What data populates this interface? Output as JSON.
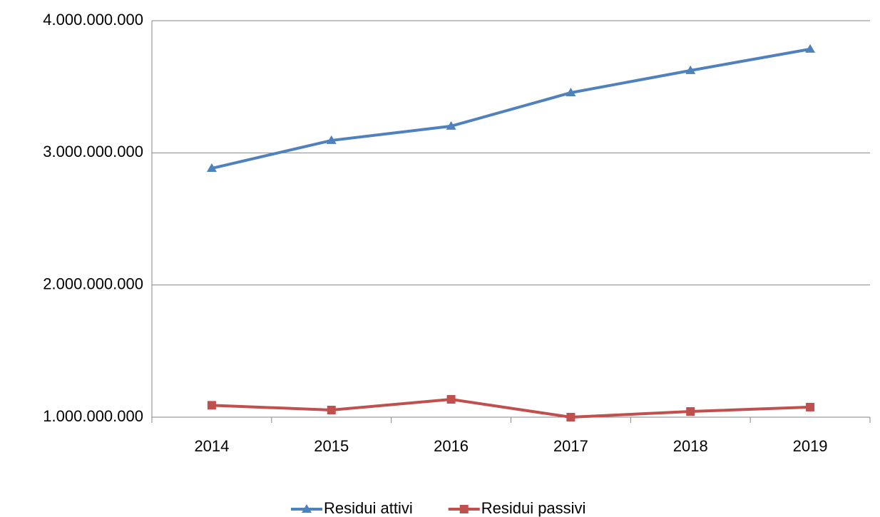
{
  "chart_data": {
    "type": "line",
    "categories": [
      "2014",
      "2015",
      "2016",
      "2017",
      "2018",
      "2019"
    ],
    "series": [
      {
        "name": "Residui attivi",
        "color": "#4f81bd",
        "marker": "triangle",
        "values": [
          2883000000,
          3094000000,
          3202000000,
          3455000000,
          3623000000,
          3785000000
        ]
      },
      {
        "name": "Residui passivi",
        "color": "#c0504d",
        "marker": "square",
        "values": [
          1090000000,
          1054000000,
          1135000000,
          1000000000,
          1043000000,
          1076000000
        ]
      }
    ],
    "ylim": [
      1000000000,
      4000000000
    ],
    "yticks": [
      {
        "value": 1000000000,
        "label": "1.000.000.000"
      },
      {
        "value": 2000000000,
        "label": "2.000.000.000"
      },
      {
        "value": 3000000000,
        "label": "3.000.000.000"
      },
      {
        "value": 4000000000,
        "label": "4.000.000.000"
      }
    ],
    "grid": true,
    "legend": "bottom"
  }
}
